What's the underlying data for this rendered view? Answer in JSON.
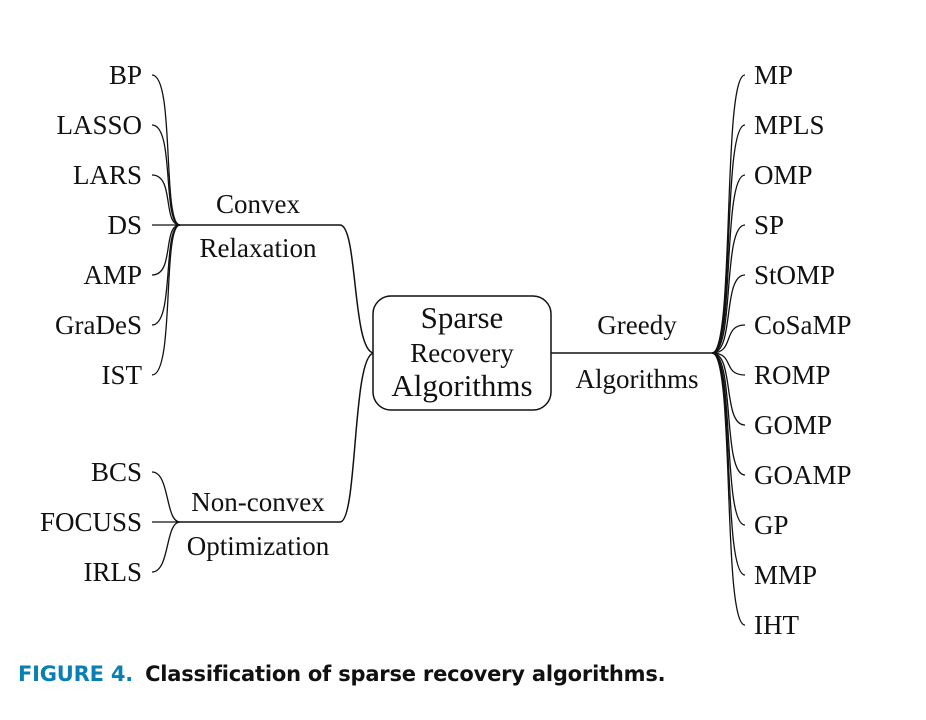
{
  "diagram": {
    "root": {
      "lines": [
        "Sparse",
        "Recovery",
        "Algorithms"
      ]
    },
    "branches": [
      {
        "id": "convex",
        "label": [
          "Convex",
          "Relaxation"
        ],
        "items": [
          "BP",
          "LASSO",
          "LARS",
          "DS",
          "AMP",
          "GraDeS",
          "IST"
        ]
      },
      {
        "id": "nonconvex",
        "label": [
          "Non-convex",
          "Optimization"
        ],
        "items": [
          "BCS",
          "FOCUSS",
          "IRLS"
        ]
      },
      {
        "id": "greedy",
        "label": [
          "Greedy",
          "Algorithms"
        ],
        "items": [
          "MP",
          "MPLS",
          "OMP",
          "SP",
          "StOMP",
          "CoSaMP",
          "ROMP",
          "GOMP",
          "GOAMP",
          "GP",
          "MMP",
          "IHT"
        ]
      }
    ]
  },
  "caption": {
    "figure_number": "FIGURE 4.",
    "text": "Classification of sparse recovery algorithms.",
    "color": "#0a7fb4"
  }
}
